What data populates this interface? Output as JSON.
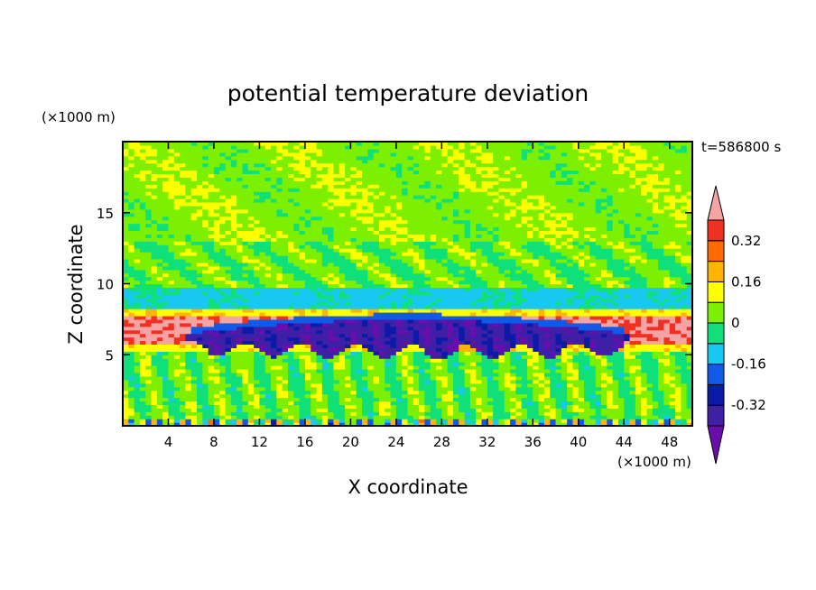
{
  "chart_data": {
    "type": "heatmap",
    "title": "potential temperature deviation",
    "xlabel": "X coordinate",
    "ylabel": "Z coordinate",
    "x_unit": "(×1000 m)",
    "y_unit": "(×1000 m)",
    "time_label": "t=586800 s",
    "xlim": [
      0,
      50
    ],
    "ylim": [
      0,
      20
    ],
    "x_ticks": [
      4,
      8,
      12,
      16,
      20,
      24,
      28,
      32,
      36,
      40,
      44,
      48
    ],
    "y_ticks": [
      5,
      10,
      15
    ],
    "colorbar": {
      "levels": [
        -0.4,
        -0.32,
        -0.24,
        -0.16,
        -0.08,
        0,
        0.08,
        0.16,
        0.24,
        0.32,
        0.4
      ],
      "colors": [
        "#6a0dad",
        "#3f1fa6",
        "#0c1aa8",
        "#0f5ae8",
        "#19c8f0",
        "#10e07a",
        "#7cf000",
        "#ffff00",
        "#ffb400",
        "#ff6a00",
        "#f03020",
        "#f4a4a4"
      ],
      "tick_labels": [
        "0.32",
        "0.16",
        "0",
        "-0.16",
        "-0.32"
      ],
      "tick_values": [
        0.32,
        0.16,
        0,
        -0.16,
        -0.32
      ],
      "extend": "both"
    },
    "features": [
      {
        "label": "cold anomaly",
        "value": -0.36,
        "x_range": [
          5,
          45
        ],
        "z_range": [
          5,
          7.5
        ]
      },
      {
        "label": "warm layer",
        "value": 0.4,
        "x_range": [
          0,
          50
        ],
        "z_range": [
          5.8,
          7.6
        ]
      },
      {
        "label": "upper cool layer",
        "value": -0.1,
        "z_range": [
          8.3,
          9.7
        ]
      }
    ]
  }
}
